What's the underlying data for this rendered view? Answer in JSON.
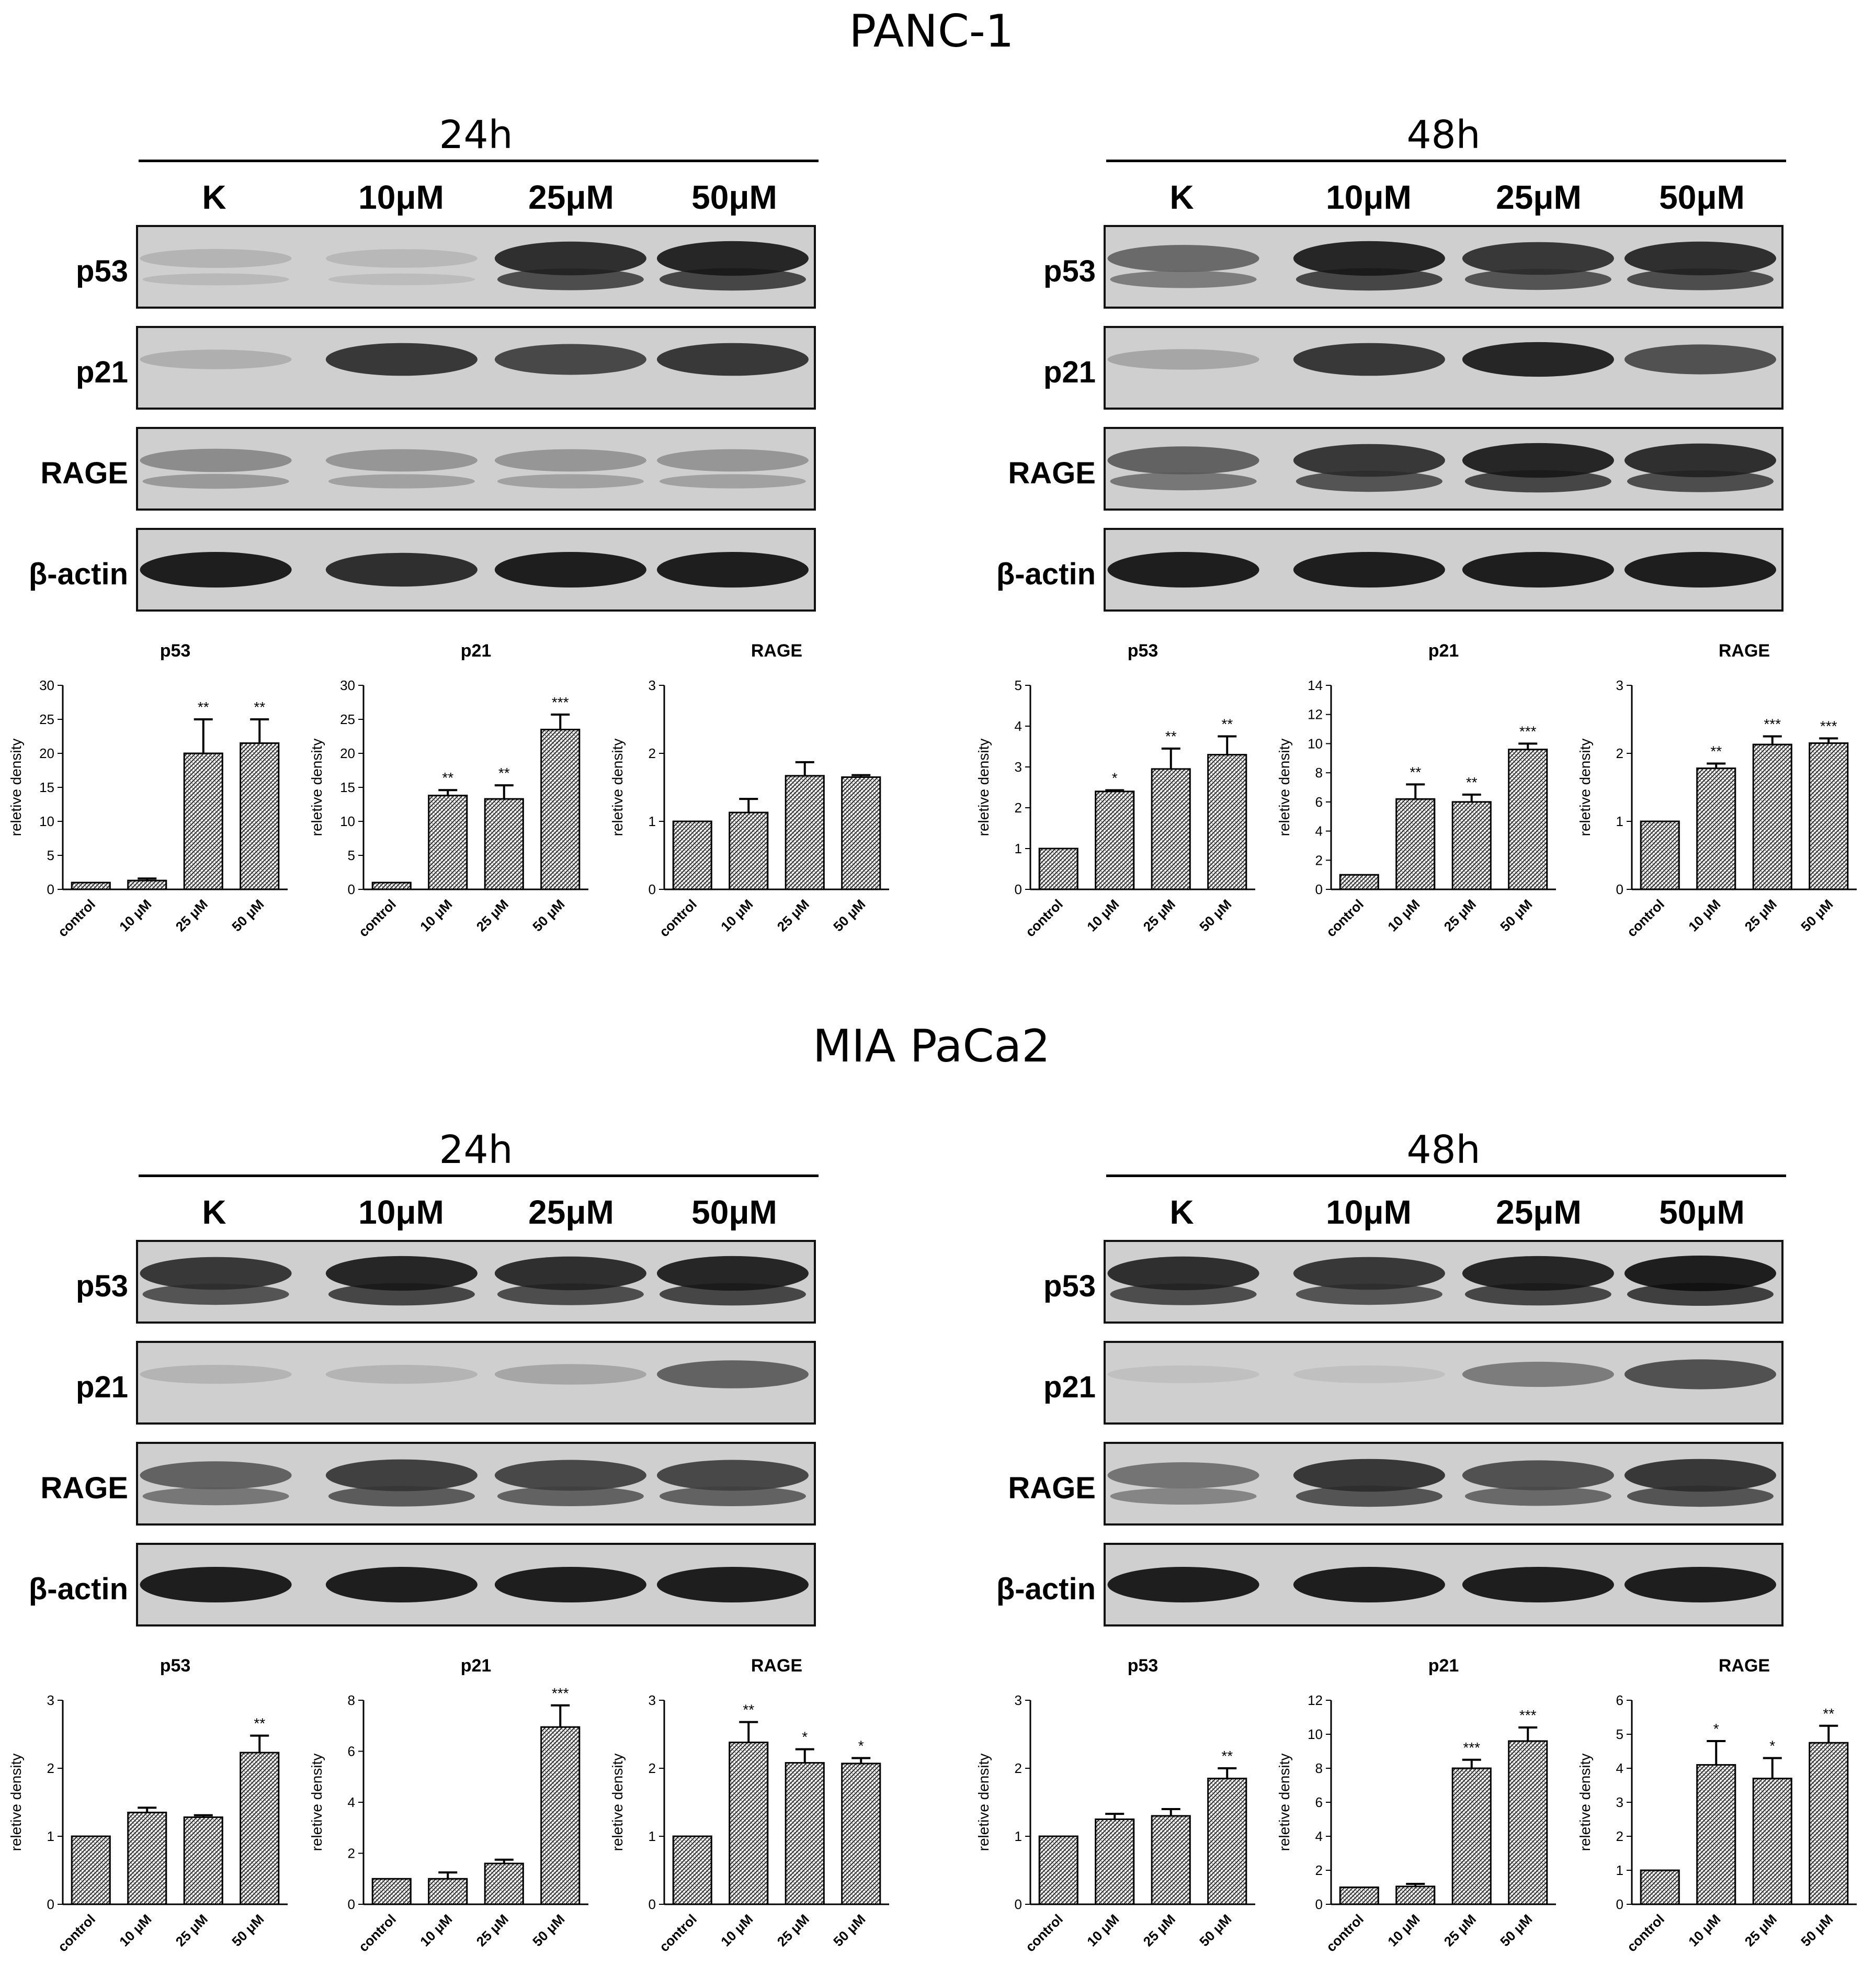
{
  "panels": [
    {
      "title": "PANC-1",
      "blocks": [
        {
          "time": "24h",
          "lanes": [
            "K",
            "10μM",
            "25μM",
            "50μM"
          ],
          "rows": [
            "p53",
            "p21",
            "RAGE",
            "β-actin"
          ],
          "band_levels": {
            "p53": [
              0.12,
              0.1,
              0.9,
              0.95
            ],
            "p21": [
              0.15,
              0.85,
              0.75,
              0.85
            ],
            "RAGE": [
              0.35,
              0.3,
              0.3,
              0.3
            ],
            "β-actin": [
              1,
              0.9,
              1,
              1
            ]
          },
          "charts": [
            {
              "type": "bar",
              "title": "p53",
              "ylabel": "reletive density",
              "categories": [
                "control",
                "10 μM",
                "25 μM",
                "50 μM"
              ],
              "values": [
                1,
                1.3,
                20,
                21.5
              ],
              "errors": [
                0,
                0.3,
                5,
                3.5
              ],
              "ylim": [
                0,
                30
              ],
              "ticks": [
                0,
                5,
                10,
                15,
                20,
                25,
                30
              ],
              "annotations": [
                "",
                "",
                "**",
                "**"
              ]
            },
            {
              "type": "bar",
              "title": "p21",
              "ylabel": "reletive density",
              "categories": [
                "control",
                "10 μM",
                "25 μM",
                "50 μM"
              ],
              "values": [
                1,
                13.8,
                13.3,
                23.5
              ],
              "errors": [
                0,
                0.8,
                2,
                2.2
              ],
              "ylim": [
                0,
                30
              ],
              "ticks": [
                0,
                5,
                10,
                15,
                20,
                25,
                30
              ],
              "annotations": [
                "",
                "**",
                "**",
                "***"
              ]
            },
            {
              "type": "bar",
              "title": "RAGE",
              "ylabel": "reletive density",
              "categories": [
                "control",
                "10 μM",
                "25 μM",
                "50 μM"
              ],
              "values": [
                1,
                1.13,
                1.67,
                1.65
              ],
              "errors": [
                0,
                0.2,
                0.2,
                0.03
              ],
              "ylim": [
                0,
                3
              ],
              "ticks": [
                0,
                1,
                2,
                3
              ],
              "annotations": [
                "",
                "",
                "",
                ""
              ]
            }
          ]
        },
        {
          "time": "48h",
          "lanes": [
            "K",
            "10μM",
            "25μM",
            "50μM"
          ],
          "rows": [
            "p53",
            "p21",
            "RAGE",
            "β-actin"
          ],
          "band_levels": {
            "p53": [
              0.55,
              0.95,
              0.85,
              0.9
            ],
            "p21": [
              0.2,
              0.85,
              0.95,
              0.7
            ],
            "RAGE": [
              0.6,
              0.85,
              0.95,
              0.9
            ],
            "β-actin": [
              1,
              1,
              1,
              1
            ]
          },
          "charts": [
            {
              "type": "bar",
              "title": "p53",
              "ylabel": "reletive density",
              "categories": [
                "control",
                "10 μM",
                "25 μM",
                "50 μM"
              ],
              "values": [
                1,
                2.4,
                2.95,
                3.3
              ],
              "errors": [
                0,
                0.03,
                0.5,
                0.45
              ],
              "ylim": [
                0,
                5
              ],
              "ticks": [
                0,
                1,
                2,
                3,
                4,
                5
              ],
              "annotations": [
                "",
                "*",
                "**",
                "**"
              ]
            },
            {
              "type": "bar",
              "title": "p21",
              "ylabel": "reletive density",
              "categories": [
                "control",
                "10 μM",
                "25 μM",
                "50 μM"
              ],
              "values": [
                1,
                6.2,
                6,
                9.6
              ],
              "errors": [
                0,
                1,
                0.5,
                0.4
              ],
              "ylim": [
                0,
                14
              ],
              "ticks": [
                0,
                2,
                4,
                6,
                8,
                10,
                12,
                14
              ],
              "annotations": [
                "",
                "**",
                "**",
                "***"
              ]
            },
            {
              "type": "bar",
              "title": "RAGE",
              "ylabel": "reletive density",
              "categories": [
                "control",
                "10 μM",
                "25 μM",
                "50 μM"
              ],
              "values": [
                1,
                1.78,
                2.13,
                2.15
              ],
              "errors": [
                0,
                0.07,
                0.12,
                0.07
              ],
              "ylim": [
                0,
                3
              ],
              "ticks": [
                0,
                1,
                2,
                3
              ],
              "annotations": [
                "",
                "**",
                "***",
                "***"
              ]
            }
          ]
        }
      ]
    },
    {
      "title": "MIA PaCa2",
      "blocks": [
        {
          "time": "24h",
          "lanes": [
            "K",
            "10μM",
            "25μM",
            "50μM"
          ],
          "rows": [
            "p53",
            "p21",
            "RAGE",
            "β-actin"
          ],
          "band_levels": {
            "p53": [
              0.85,
              0.95,
              0.9,
              0.95
            ],
            "p21": [
              0.12,
              0.12,
              0.2,
              0.6
            ],
            "RAGE": [
              0.6,
              0.8,
              0.75,
              0.75
            ],
            "β-actin": [
              1,
              1,
              1,
              1
            ]
          },
          "charts": [
            {
              "type": "bar",
              "title": "p53",
              "ylabel": "reletive density",
              "categories": [
                "control",
                "10 μM",
                "25 μM",
                "50 μM"
              ],
              "values": [
                1,
                1.35,
                1.28,
                2.23
              ],
              "errors": [
                0,
                0.07,
                0.03,
                0.25
              ],
              "ylim": [
                0,
                3
              ],
              "ticks": [
                0,
                1,
                2,
                3
              ],
              "annotations": [
                "",
                "",
                "",
                "**"
              ]
            },
            {
              "type": "bar",
              "title": "p21",
              "ylabel": "reletive density",
              "categories": [
                "control",
                "10 μM",
                "25 μM",
                "50 μM"
              ],
              "values": [
                1,
                1,
                1.6,
                6.95
              ],
              "errors": [
                0,
                0.25,
                0.15,
                0.85
              ],
              "ylim": [
                0,
                8
              ],
              "ticks": [
                0,
                2,
                4,
                6,
                8
              ],
              "annotations": [
                "",
                "",
                "",
                "***"
              ]
            },
            {
              "type": "bar",
              "title": "RAGE",
              "ylabel": "reletive density",
              "categories": [
                "control",
                "10 μM",
                "25 μM",
                "50 μM"
              ],
              "values": [
                1,
                2.38,
                2.08,
                2.07
              ],
              "errors": [
                0,
                0.3,
                0.2,
                0.08
              ],
              "ylim": [
                0,
                3
              ],
              "ticks": [
                0,
                1,
                2,
                3
              ],
              "annotations": [
                "",
                "**",
                "*",
                "*"
              ]
            }
          ]
        },
        {
          "time": "48h",
          "lanes": [
            "K",
            "10μM",
            "25μM",
            "50μM"
          ],
          "rows": [
            "p53",
            "p21",
            "RAGE",
            "β-actin"
          ],
          "band_levels": {
            "p53": [
              0.9,
              0.85,
              0.95,
              1
            ],
            "p21": [
              0.05,
              0.05,
              0.45,
              0.7
            ],
            "RAGE": [
              0.5,
              0.85,
              0.7,
              0.85
            ],
            "β-actin": [
              1,
              1,
              1,
              1
            ]
          },
          "charts": [
            {
              "type": "bar",
              "title": "p53",
              "ylabel": "reletive density",
              "categories": [
                "control",
                "10 μM",
                "25 μM",
                "50 μM"
              ],
              "values": [
                1,
                1.25,
                1.3,
                1.85
              ],
              "errors": [
                0,
                0.08,
                0.1,
                0.15
              ],
              "ylim": [
                0,
                3
              ],
              "ticks": [
                0,
                1,
                2,
                3
              ],
              "annotations": [
                "",
                "",
                "",
                "**"
              ]
            },
            {
              "type": "bar",
              "title": "p21",
              "ylabel": "reletive density",
              "categories": [
                "control",
                "10 μM",
                "25 μM",
                "50 μM"
              ],
              "values": [
                1,
                1.05,
                8,
                9.6
              ],
              "errors": [
                0,
                0.15,
                0.5,
                0.8
              ],
              "ylim": [
                0,
                12
              ],
              "ticks": [
                0,
                2,
                4,
                6,
                8,
                10,
                12
              ],
              "annotations": [
                "",
                "",
                "***",
                "***"
              ]
            },
            {
              "type": "bar",
              "title": "RAGE",
              "ylabel": "reletive density",
              "categories": [
                "control",
                "10 μM",
                "25 μM",
                "50 μM"
              ],
              "values": [
                1,
                4.1,
                3.7,
                4.75
              ],
              "errors": [
                0,
                0.7,
                0.6,
                0.5
              ],
              "ylim": [
                0,
                6
              ],
              "ticks": [
                0,
                1,
                2,
                3,
                4,
                5,
                6
              ],
              "annotations": [
                "",
                "*",
                "*",
                "**"
              ]
            }
          ]
        }
      ]
    }
  ]
}
